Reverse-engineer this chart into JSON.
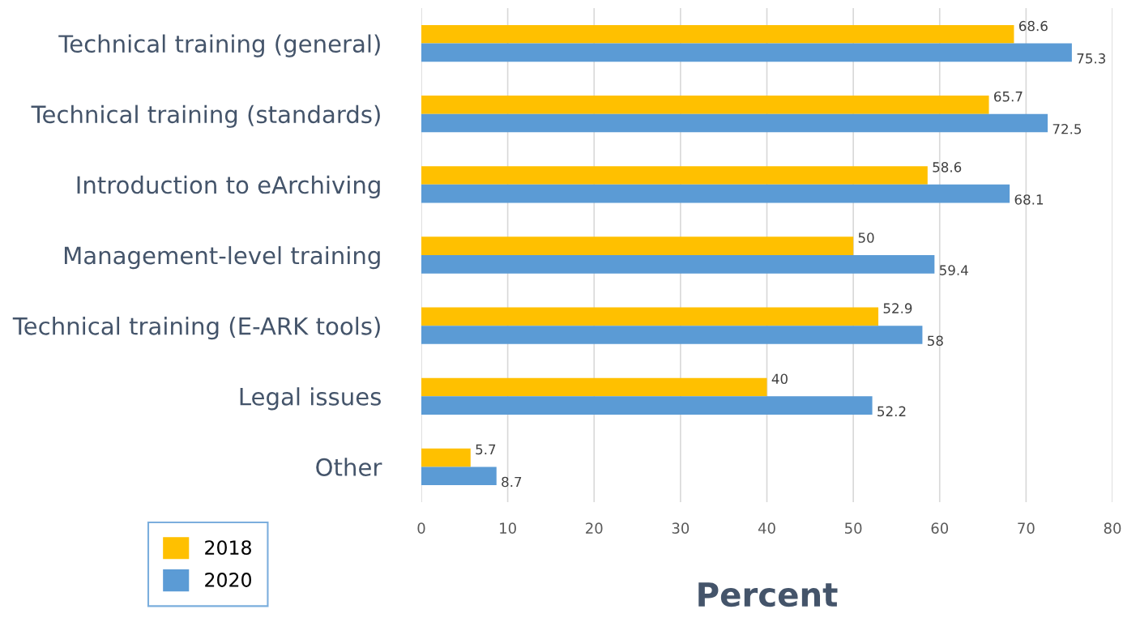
{
  "chart_data": {
    "type": "bar",
    "orientation": "horizontal",
    "xlabel": "Percent",
    "categories": [
      "Technical training (general)",
      "Technical training (standards)",
      "Introduction to eArchiving",
      "Management-level training",
      "Technical training (E-ARK tools)",
      "Legal issues",
      "Other"
    ],
    "series": [
      {
        "name": "2018",
        "color": "#ffc000",
        "values": [
          68.6,
          65.7,
          58.6,
          50,
          52.9,
          40,
          5.7
        ]
      },
      {
        "name": "2020",
        "color": "#5b9bd5",
        "values": [
          75.3,
          72.5,
          68.1,
          59.4,
          58,
          52.2,
          8.7
        ]
      }
    ],
    "xlim": [
      0,
      80
    ],
    "xticks": [
      0,
      10,
      20,
      30,
      40,
      50,
      60,
      70,
      80
    ],
    "grid": "x",
    "legend": "bottom left",
    "data_labels": true
  }
}
